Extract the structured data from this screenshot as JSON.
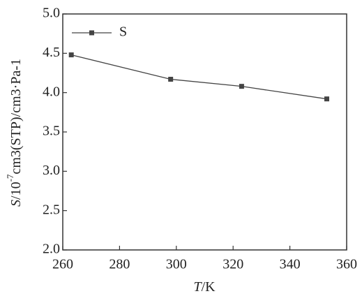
{
  "chart_data": {
    "type": "line",
    "x": [
      263,
      298,
      323,
      353
    ],
    "series": [
      {
        "name": "S",
        "color": "#444444",
        "values": [
          4.48,
          4.17,
          4.08,
          3.92
        ]
      }
    ],
    "xlim": [
      260,
      360
    ],
    "xticks": [
      260,
      280,
      300,
      320,
      340,
      360
    ],
    "ylim": [
      2.0,
      5.0
    ],
    "yticks": [
      {
        "value": 2,
        "label": "2.0"
      },
      2.5,
      {
        "value": 3,
        "label": "3.0"
      },
      3.5,
      {
        "value": 4,
        "label": "4.0"
      },
      4.5,
      {
        "value": 5,
        "label": "5.0"
      }
    ],
    "xlabel": [
      "T",
      "/K"
    ],
    "ylabel": [
      "S",
      "/10",
      "-7",
      "cm3(STP)/cm3·Pa-1"
    ],
    "legend": "upper left",
    "grid": false
  }
}
